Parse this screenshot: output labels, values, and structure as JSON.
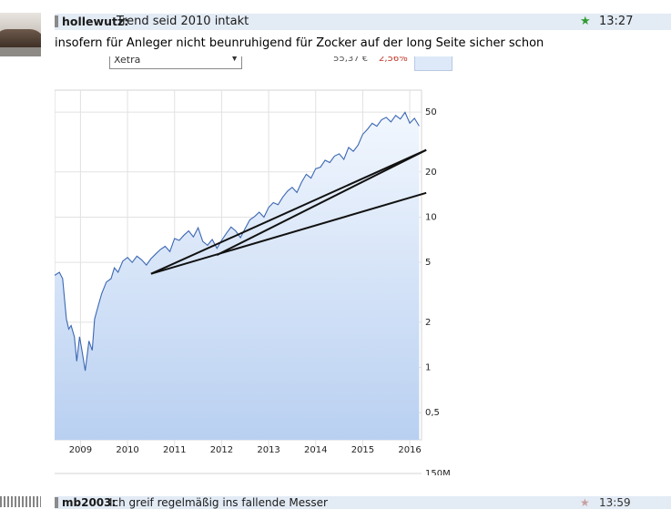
{
  "post": {
    "username": "hollewutz:",
    "title": "Trend seid 2010 intakt",
    "time": "13:27",
    "star_icon": "star-icon",
    "body": "insofern für Anleger nicht beunruhigend für Zocker auf der long Seite sicher schon"
  },
  "embed": {
    "exchange": "Xetra",
    "price": "55,37 €",
    "change": "2,56%"
  },
  "chart_data": {
    "type": "area",
    "y_scale": "log",
    "xlabel": "",
    "ylabel": "",
    "x_ticks": [
      "2009",
      "2010",
      "2011",
      "2012",
      "2013",
      "2014",
      "2015",
      "2016"
    ],
    "y_ticks": [
      "0,5",
      "1",
      "2",
      "5",
      "10",
      "20",
      "50"
    ],
    "y_tick_values": [
      0.5,
      1,
      2,
      5,
      10,
      20,
      50
    ],
    "volume_label": "150M",
    "ylim": [
      0.33,
      70
    ],
    "xlim": [
      2008.45,
      2016.25
    ],
    "grid": true,
    "series": [
      {
        "x": [
          2008.45,
          2008.55,
          2008.62,
          2008.7,
          2008.75,
          2008.8,
          2008.87,
          2008.92,
          2008.98,
          2009.03,
          2009.1,
          2009.18,
          2009.25,
          2009.3,
          2009.38,
          2009.45,
          2009.55,
          2009.65,
          2009.72,
          2009.8,
          2009.9,
          2010.0,
          2010.1,
          2010.2,
          2010.3,
          2010.4,
          2010.5,
          2010.6,
          2010.7,
          2010.8,
          2010.9,
          2011.0,
          2011.1,
          2011.2,
          2011.3,
          2011.4,
          2011.5,
          2011.6,
          2011.7,
          2011.8,
          2011.9,
          2012.0,
          2012.1,
          2012.2,
          2012.3,
          2012.4,
          2012.5,
          2012.6,
          2012.7,
          2012.8,
          2012.9,
          2013.0,
          2013.1,
          2013.2,
          2013.3,
          2013.4,
          2013.5,
          2013.6,
          2013.7,
          2013.8,
          2013.9,
          2014.0,
          2014.1,
          2014.2,
          2014.3,
          2014.4,
          2014.5,
          2014.6,
          2014.7,
          2014.8,
          2014.9,
          2015.0,
          2015.1,
          2015.2,
          2015.3,
          2015.4,
          2015.5,
          2015.6,
          2015.7,
          2015.8,
          2015.9,
          2016.0,
          2016.1,
          2016.2
        ],
        "y": [
          4.1,
          4.3,
          3.9,
          2.1,
          1.8,
          1.9,
          1.6,
          1.1,
          1.6,
          1.3,
          0.95,
          1.5,
          1.3,
          2.1,
          2.6,
          3.1,
          3.7,
          3.9,
          4.6,
          4.3,
          5.1,
          5.4,
          5.0,
          5.5,
          5.2,
          4.8,
          5.3,
          5.7,
          6.1,
          6.4,
          5.9,
          7.2,
          7.0,
          7.6,
          8.1,
          7.4,
          8.5,
          6.9,
          6.5,
          7.1,
          6.2,
          7.0,
          7.8,
          8.6,
          8.1,
          7.3,
          8.4,
          9.6,
          10.1,
          10.8,
          10.0,
          11.6,
          12.5,
          12.1,
          13.6,
          14.9,
          15.8,
          14.6,
          17.1,
          19.3,
          18.2,
          21.0,
          21.5,
          23.9,
          23.1,
          25.5,
          26.4,
          24.2,
          29.1,
          27.4,
          30.2,
          35.6,
          38.4,
          42.1,
          40.3,
          44.5,
          46.1,
          43.0,
          47.5,
          45.0,
          49.8,
          42.2,
          45.5,
          40.4
        ]
      }
    ],
    "trendlines": [
      {
        "x": [
          2010.5,
          2016.35
        ],
        "y": [
          4.2,
          28
        ]
      },
      {
        "x": [
          2010.5,
          2016.35
        ],
        "y": [
          4.2,
          14.5
        ]
      },
      {
        "x": [
          2011.9,
          2016.35
        ],
        "y": [
          5.6,
          28
        ]
      }
    ]
  },
  "post2": {
    "username": "mb2003:",
    "title": "Ich greif regelmäßig ins fallende Messer",
    "time": "13:59"
  }
}
